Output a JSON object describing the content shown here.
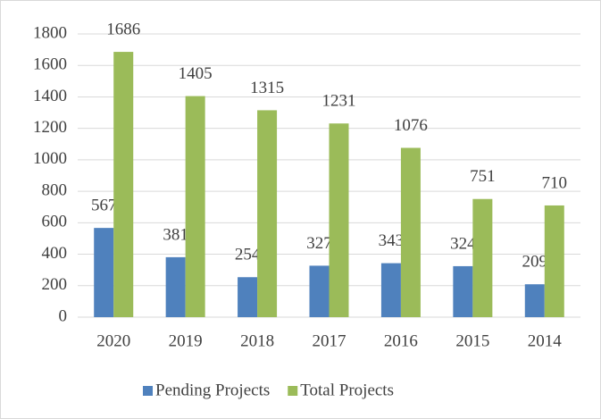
{
  "chart_data": {
    "type": "bar",
    "categories": [
      "2020",
      "2019",
      "2018",
      "2017",
      "2016",
      "2015",
      "2014"
    ],
    "series": [
      {
        "name": "Pending Projects",
        "color": "#4f81bd",
        "values": [
          567,
          381,
          254,
          327,
          343,
          324,
          209
        ]
      },
      {
        "name": "Total Projects",
        "color": "#9bbb59",
        "values": [
          1686,
          1405,
          1315,
          1231,
          1076,
          751,
          710
        ]
      }
    ],
    "ylim": [
      0,
      1800
    ],
    "yticks": [
      0,
      200,
      400,
      600,
      800,
      1000,
      1200,
      1400,
      1600,
      1800
    ],
    "grid": true,
    "legend": "bottom"
  }
}
